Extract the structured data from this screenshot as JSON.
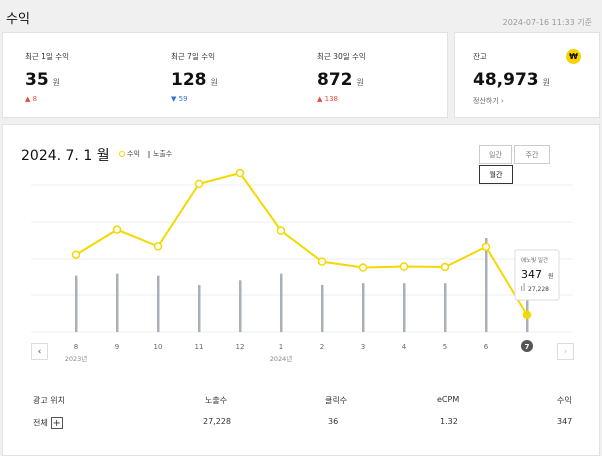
{
  "header": {
    "title": "수익",
    "timestamp": "2024-07-16 11:33 기준"
  },
  "stats": [
    {
      "label": "최근 1일 수익",
      "value": "35",
      "unit": "원",
      "change": "8",
      "direction": "up"
    },
    {
      "label": "최근 7일 수익",
      "value": "128",
      "unit": "원",
      "change": "59",
      "direction": "down"
    },
    {
      "label": "최근 30일 수익",
      "value": "872",
      "unit": "원",
      "change": "138",
      "direction": "up"
    }
  ],
  "balance": {
    "label": "잔고",
    "value": "48,973",
    "unit": "원",
    "settle_link": "정산하기",
    "icon": "won-icon"
  },
  "chart_section": {
    "title": "2024. 7. 1 월",
    "legend": {
      "revenue": "수익",
      "impressions": "노출수"
    },
    "period_buttons": {
      "daily": "일간",
      "weekly": "주간",
      "monthly": "월간"
    },
    "selected_period": "월간",
    "tooltip": {
      "title": "애노빛 일간",
      "value": "347",
      "unit": "원",
      "sub": "27,228"
    }
  },
  "chart_data": {
    "type": "line",
    "categories": [
      "8",
      "9",
      "10",
      "11",
      "12",
      "1",
      "2",
      "3",
      "4",
      "5",
      "6",
      "7"
    ],
    "year_labels": [
      {
        "at": "8",
        "text": "2023년"
      },
      {
        "at": "1",
        "text": "2024년"
      }
    ],
    "selected_category": "7",
    "series": [
      {
        "name": "수익",
        "kind": "line",
        "color": "#f5d800",
        "values": [
          1570,
          2080,
          1740,
          3010,
          3230,
          2060,
          1430,
          1310,
          1330,
          1320,
          1730,
          347
        ]
      },
      {
        "name": "노출수",
        "kind": "bar",
        "color": "#a8b0b8",
        "values": [
          0.6,
          0.62,
          0.6,
          0.5,
          0.55,
          0.62,
          0.5,
          0.52,
          0.52,
          0.52,
          1.0,
          0.45
        ]
      }
    ],
    "grid": true
  },
  "table": {
    "headers": [
      "광고 위치",
      "노출수",
      "클릭수",
      "eCPM",
      "수익"
    ],
    "rows": [
      {
        "position": "전체",
        "impressions": "27,228",
        "clicks": "36",
        "ecpm": "1.32",
        "revenue": "347"
      }
    ]
  },
  "colors": {
    "accent": "#f5d800",
    "up": "#e64b3c",
    "down": "#3b6fd6",
    "bar": "#a8b0b8"
  }
}
